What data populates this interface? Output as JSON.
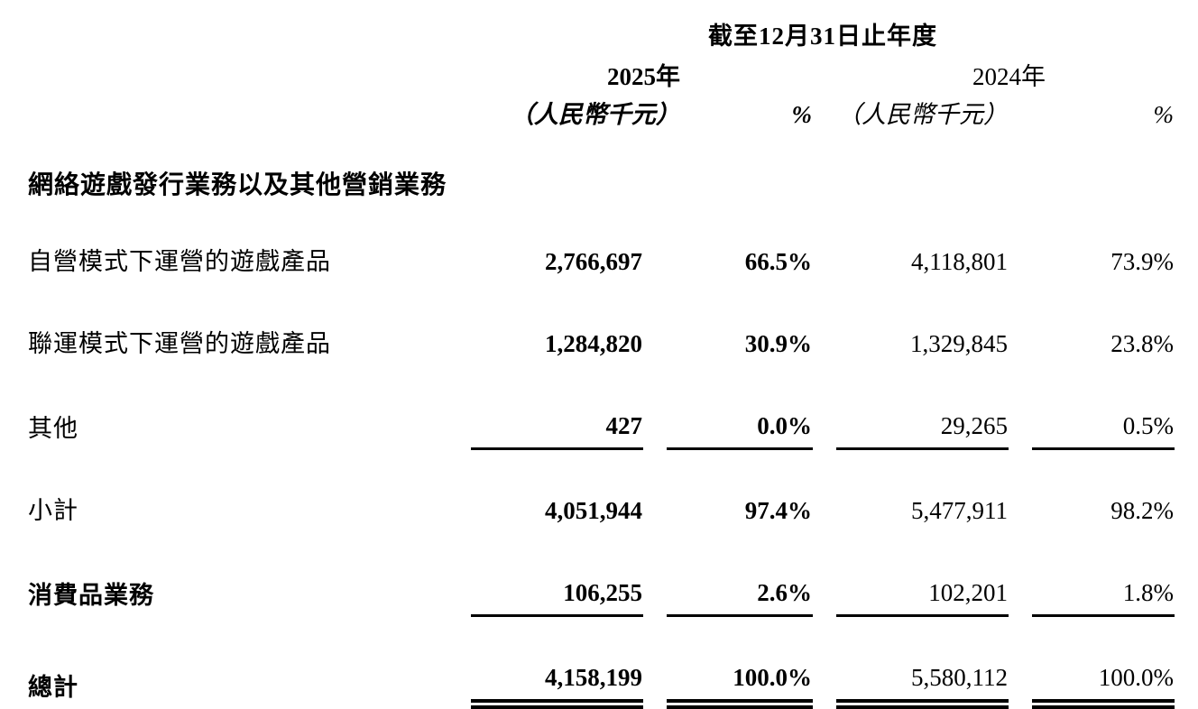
{
  "header": {
    "period": "截至12月31日止年度",
    "year_2025": "2025年",
    "unit_2025": "（人民幣千元）",
    "pct_2025": "%",
    "year_2024": "2024年",
    "unit_2024": "（人民幣千元）",
    "pct_2024": "%"
  },
  "section_title": "網絡遊戲發行業務以及其他營銷業務",
  "rows": [
    {
      "label": "自營模式下運營的遊戲產品",
      "v2025": "2,766,697",
      "p2025": "66.5%",
      "v2024": "4,118,801",
      "p2024": "73.9%"
    },
    {
      "label": "聯運模式下運營的遊戲產品",
      "v2025": "1,284,820",
      "p2025": "30.9%",
      "v2024": "1,329,845",
      "p2024": "23.8%"
    },
    {
      "label": "其他",
      "v2025": "427",
      "p2025": "0.0%",
      "v2024": "29,265",
      "p2024": "0.5%"
    },
    {
      "label": "小計",
      "v2025": "4,051,944",
      "p2025": "97.4%",
      "v2024": "5,477,911",
      "p2024": "98.2%"
    },
    {
      "label": "消費品業務",
      "v2025": "106,255",
      "p2025": "2.6%",
      "v2024": "102,201",
      "p2024": "1.8%"
    },
    {
      "label": "總計",
      "v2025": "4,158,199",
      "p2025": "100.0%",
      "v2024": "5,580,112",
      "p2024": "100.0%"
    }
  ]
}
